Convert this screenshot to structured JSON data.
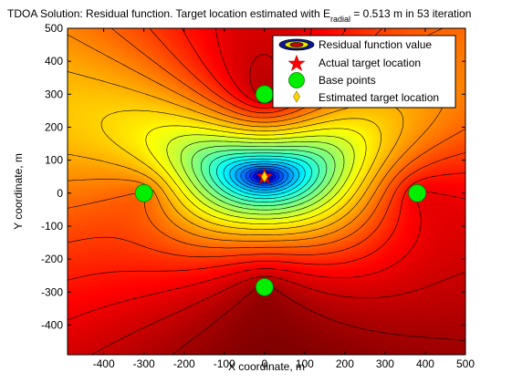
{
  "chart_data": {
    "type": "contour",
    "title_parts": {
      "prefix": "TDOA Solution: Residual function. Target location estimated with E",
      "subscript": "radial",
      "suffix": " = 0.513 m in 53 iteration"
    },
    "xlabel": "X coordinate, m",
    "ylabel": "Y coordinate, m",
    "xlim": [
      -490,
      500
    ],
    "ylim": [
      -490,
      500
    ],
    "xticks": [
      -400,
      -300,
      -200,
      -100,
      0,
      100,
      200,
      300,
      400,
      500
    ],
    "yticks": [
      500,
      400,
      300,
      200,
      100,
      0,
      -100,
      -200,
      -300,
      -400
    ],
    "colormap": "jet",
    "contour_levels": 26,
    "legend": {
      "placement": "top-right",
      "entries": [
        {
          "label": "Residual function value",
          "marker": "contour-ellipse"
        },
        {
          "label": "Actual target location",
          "marker": "red-pentagram"
        },
        {
          "label": "Base points",
          "marker": "green-circle"
        },
        {
          "label": "Estimated target location",
          "marker": "yellow-diamond"
        }
      ]
    },
    "base_points": [
      {
        "x": 0,
        "y": 300
      },
      {
        "x": -300,
        "y": 0
      },
      {
        "x": 380,
        "y": 0
      },
      {
        "x": 0,
        "y": -285
      }
    ],
    "actual_target": {
      "x": 0,
      "y": 50
    },
    "estimated_target": {
      "x": 0,
      "y": 50
    },
    "colors": {
      "base_point": "#00ee00",
      "actual_target": "#ff0000",
      "estimated_target": "#ffd700",
      "contour_line": "#000000"
    }
  }
}
